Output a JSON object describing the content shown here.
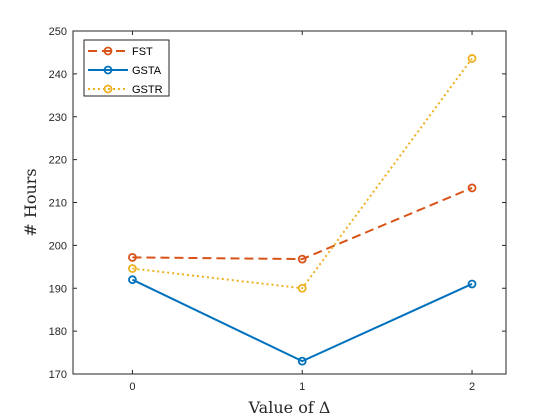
{
  "chart_data": {
    "type": "line",
    "title": "",
    "xlabel": "Value of Δ",
    "ylabel": "# Hours",
    "x": [
      0,
      1,
      2
    ],
    "xlim": [
      -0.35,
      2.2
    ],
    "ylim": [
      170,
      250
    ],
    "xticks": [
      "0",
      "1",
      "2"
    ],
    "yticks": [
      "170",
      "180",
      "190",
      "200",
      "210",
      "220",
      "230",
      "240",
      "250"
    ],
    "grid": false,
    "legend_position": "top-left",
    "series": [
      {
        "name": "FST",
        "values": [
          197.2,
          196.8,
          213.4
        ],
        "color": "#D95319",
        "dash": "dashed",
        "marker": "circle"
      },
      {
        "name": "GSTA",
        "values": [
          192.0,
          173.0,
          191.0
        ],
        "color": "#0072BD",
        "dash": "solid",
        "marker": "circle"
      },
      {
        "name": "GSTR",
        "values": [
          194.6,
          190.0,
          243.6
        ],
        "color": "#EDB120",
        "dash": "dotted",
        "marker": "circle"
      }
    ]
  }
}
